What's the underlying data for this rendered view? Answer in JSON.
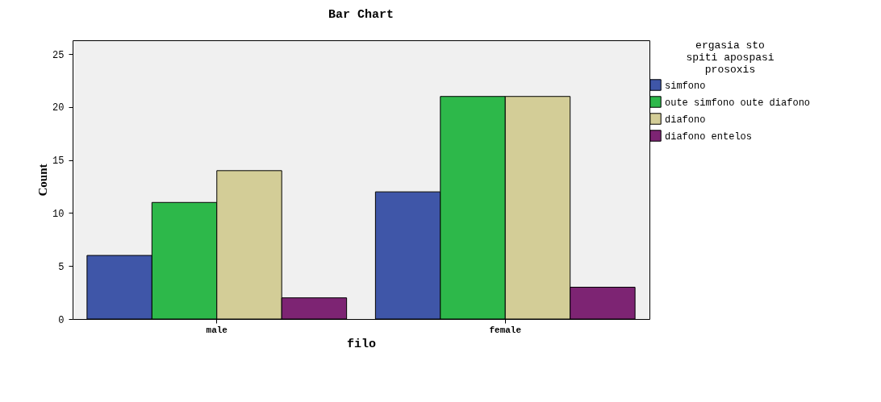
{
  "chart_data": {
    "type": "bar",
    "title": "Bar Chart",
    "xlabel": "filo",
    "ylabel": "Count",
    "legend_title": "ergasia sto spiti apospasi prosoxis",
    "categories": [
      "male",
      "female"
    ],
    "series": [
      {
        "name": "simfono",
        "color": "#3f56a8",
        "values": [
          6,
          12
        ]
      },
      {
        "name": "oute simfono oute diafono",
        "color": "#2db84a",
        "values": [
          11,
          21
        ]
      },
      {
        "name": "diafono",
        "color": "#d3cd97",
        "values": [
          14,
          21
        ]
      },
      {
        "name": "diafono entelos",
        "color": "#7d2473",
        "values": [
          2,
          3
        ]
      }
    ],
    "ylim": [
      0,
      26.3
    ],
    "yticks": [
      0,
      5,
      10,
      15,
      20,
      25
    ],
    "grid": false,
    "legend": "right"
  }
}
